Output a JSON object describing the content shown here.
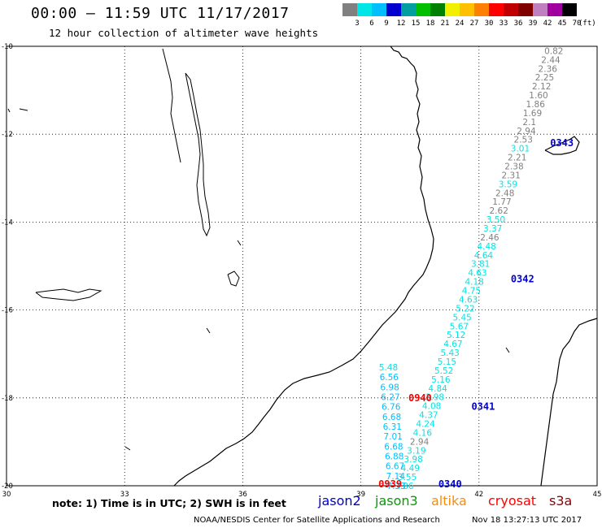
{
  "header": {
    "title": "00:00 – 11:59 UTC 11/17/2017",
    "subtitle": "12 hour collection of altimeter wave heights"
  },
  "color_scale": {
    "colors": [
      "#808080",
      "#00e5e5",
      "#00bfff",
      "#0000d0",
      "#00a0a0",
      "#00c000",
      "#008000",
      "#f0f000",
      "#ffc000",
      "#ff8000",
      "#ff0000",
      "#c00000",
      "#800000",
      "#c080c0",
      "#a000a0",
      "#000000"
    ],
    "labels": [
      "3",
      "6",
      "9",
      "12",
      "15",
      "18",
      "21",
      "24",
      "27",
      "30",
      "33",
      "36",
      "39",
      "42",
      "45",
      "70"
    ],
    "units": "(ft)"
  },
  "axes": {
    "lon_labels": [
      "30",
      "33",
      "36",
      "39",
      "42",
      "45"
    ],
    "lat_labels": [
      "-10",
      "-12",
      "-14",
      "-16",
      "-18",
      "-20"
    ]
  },
  "tracks": [
    {
      "id": "t1",
      "label": "0340",
      "label_color": "#0000d0",
      "lat_start": -10.1,
      "lat_end": -20.0,
      "lon_start": 43.9,
      "lon_end": 40.1,
      "values": [
        "0.82",
        "2.44",
        "2.36",
        "2.25",
        "2.12",
        "1.60",
        "1.86",
        "1.69",
        "2.1",
        "2.94",
        "2.53",
        "3.01",
        "2.21",
        "2.38",
        "2.31",
        "3.59",
        "2.48",
        "1.77",
        "2.62",
        "3.50",
        "3.37",
        "2.46",
        "4.48",
        "4.64",
        "3.81",
        "4.63",
        "4.18",
        "4.75",
        "4.63",
        "5.22",
        "5.45",
        "5.67",
        "5.12",
        "4.67",
        "5.43",
        "5.15",
        "5.52",
        "5.16",
        "4.84",
        "3.98",
        "4.08",
        "4.37",
        "4.24",
        "4.16",
        "2.94",
        "3.19",
        "3.98",
        "4.49",
        "3.55",
        "3.86"
      ]
    },
    {
      "id": "t2",
      "label": "0939",
      "label_color": "#ff0000",
      "lat_start": -17.3,
      "lat_end": -20.0,
      "lon_start": 39.7,
      "lon_end": 39.9,
      "values": [
        "5.48",
        "6.56",
        "6.98",
        "6.27",
        "6.76",
        "6.68",
        "6.31",
        "7.01",
        "6.68",
        "6.88",
        "6.67",
        "7.14",
        "7.33"
      ]
    }
  ],
  "pass_labels": [
    {
      "text": "0343",
      "color": "#0000d0"
    },
    {
      "text": "0342",
      "color": "#0000d0"
    },
    {
      "text": "0341",
      "color": "#0000d0"
    },
    {
      "text": "0940",
      "color": "#ff0000"
    }
  ],
  "note": "note: 1) Time is in UTC; 2) SWH is in feet",
  "satellites": [
    {
      "name": "jason2",
      "color": "#0000d0"
    },
    {
      "name": "jason3",
      "color": "#00a000"
    },
    {
      "name": "altika",
      "color": "#ff8c00"
    },
    {
      "name": "cryosat",
      "color": "#ff0000"
    },
    {
      "name": "s3a",
      "color": "#8b0000"
    }
  ],
  "footer": "NOAA/NESDIS Center for Satellite Applications and Research",
  "timestamp": "Nov 18 13:27:13 UTC 2017"
}
